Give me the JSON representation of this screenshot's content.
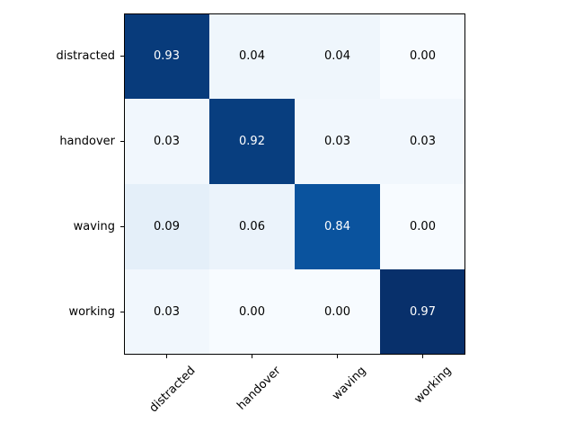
{
  "chart_data": {
    "type": "heatmap",
    "title": "",
    "xlabel": "",
    "ylabel": "",
    "x_categories": [
      "distracted",
      "handover",
      "waving",
      "working"
    ],
    "y_categories": [
      "distracted",
      "handover",
      "waving",
      "working"
    ],
    "values": [
      [
        0.93,
        0.04,
        0.04,
        0.0
      ],
      [
        0.03,
        0.92,
        0.03,
        0.03
      ],
      [
        0.09,
        0.06,
        0.84,
        0.0
      ],
      [
        0.03,
        0.0,
        0.0,
        0.97
      ]
    ],
    "value_labels": [
      [
        "0.93",
        "0.04",
        "0.04",
        "0.00"
      ],
      [
        "0.03",
        "0.92",
        "0.03",
        "0.03"
      ],
      [
        "0.09",
        "0.06",
        "0.84",
        "0.00"
      ],
      [
        "0.03",
        "0.00",
        "0.00",
        "0.97"
      ]
    ],
    "colormap": "Blues",
    "color_range": [
      0,
      0.97
    ],
    "colors": {
      "low": "#f7fbff",
      "high": "#08306b"
    },
    "x_tick_rotation_deg": 45,
    "grid": false,
    "legend": "none"
  }
}
